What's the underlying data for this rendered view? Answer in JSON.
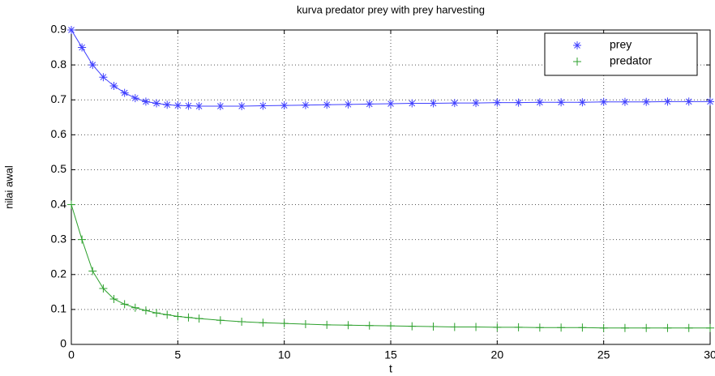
{
  "chart_data": {
    "type": "line",
    "title": "kurva predator prey with prey harvesting",
    "xlabel": "t",
    "ylabel": "nilai awal",
    "x": [
      0,
      0.5,
      1,
      1.5,
      2,
      2.5,
      3,
      3.5,
      4,
      4.5,
      5,
      5.5,
      6,
      7,
      8,
      9,
      10,
      11,
      12,
      13,
      14,
      15,
      16,
      17,
      18,
      19,
      20,
      21,
      22,
      23,
      24,
      25,
      26,
      27,
      28,
      29,
      30
    ],
    "series": [
      {
        "name": "prey",
        "color": "#4040ff",
        "marker": "*",
        "values": [
          0.9,
          0.85,
          0.8,
          0.765,
          0.74,
          0.72,
          0.705,
          0.695,
          0.69,
          0.686,
          0.684,
          0.683,
          0.682,
          0.682,
          0.682,
          0.683,
          0.684,
          0.685,
          0.686,
          0.687,
          0.688,
          0.689,
          0.69,
          0.69,
          0.691,
          0.691,
          0.692,
          0.692,
          0.693,
          0.693,
          0.693,
          0.694,
          0.694,
          0.694,
          0.695,
          0.695,
          0.695
        ]
      },
      {
        "name": "predator",
        "color": "#2ca02c",
        "marker": "+",
        "values": [
          0.4,
          0.3,
          0.21,
          0.16,
          0.13,
          0.115,
          0.105,
          0.097,
          0.09,
          0.085,
          0.08,
          0.077,
          0.074,
          0.069,
          0.065,
          0.062,
          0.06,
          0.058,
          0.056,
          0.055,
          0.054,
          0.053,
          0.052,
          0.051,
          0.05,
          0.05,
          0.049,
          0.049,
          0.048,
          0.048,
          0.048,
          0.047,
          0.047,
          0.047,
          0.047,
          0.047,
          0.047
        ]
      }
    ],
    "xlim": [
      0,
      30
    ],
    "xticks": [
      0,
      5,
      10,
      15,
      20,
      25,
      30
    ],
    "ylim": [
      0,
      0.9
    ],
    "yticks": [
      0,
      0.1,
      0.2,
      0.3,
      0.4,
      0.5,
      0.6,
      0.7,
      0.8,
      0.9
    ],
    "grid": true,
    "legend": "upper right"
  }
}
